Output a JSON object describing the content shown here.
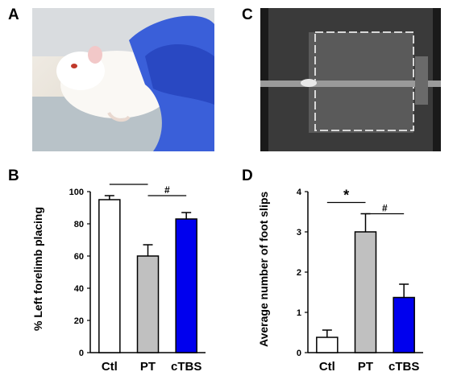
{
  "panels": {
    "a": "A",
    "b": "B",
    "c": "C",
    "d": "D"
  },
  "chart_data": [
    {
      "type": "bar",
      "categories": [
        "Ctl",
        "PT",
        "cTBS"
      ],
      "values": [
        95,
        60,
        83
      ],
      "errors": [
        2.5,
        7,
        4
      ],
      "colors": [
        "#ffffff",
        "#c0c0c0",
        "#0000ee"
      ],
      "ylabel": "% Left  forelimb placing",
      "ylim": [
        0,
        100
      ],
      "yticks": [
        "0",
        "20",
        "40",
        "60",
        "80",
        "100"
      ],
      "significance": [
        {
          "from": 0,
          "to": 1,
          "label": "*"
        },
        {
          "from": 1,
          "to": 2,
          "label": "#"
        }
      ]
    },
    {
      "type": "bar",
      "categories": [
        "Ctl",
        "PT",
        "cTBS"
      ],
      "values": [
        0.38,
        3.0,
        1.37
      ],
      "errors": [
        0.18,
        0.45,
        0.33
      ],
      "colors": [
        "#ffffff",
        "#c0c0c0",
        "#0000ee"
      ],
      "ylabel": "Average number of foot slips",
      "ylim": [
        0,
        4
      ],
      "yticks": [
        "0",
        "1",
        "2",
        "3",
        "4"
      ],
      "significance": [
        {
          "from": 0,
          "to": 1,
          "label": "*"
        },
        {
          "from": 1,
          "to": 2,
          "label": "#"
        }
      ]
    }
  ]
}
